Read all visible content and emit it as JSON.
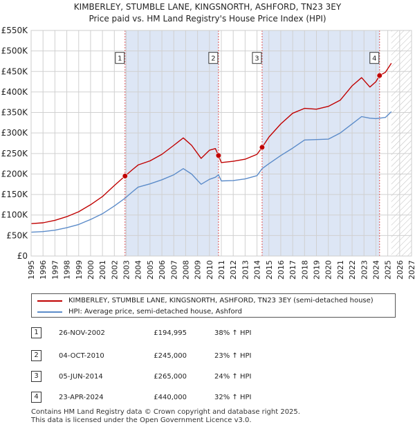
{
  "title": {
    "line1": "KIMBERLEY, STUMBLE LANE, KINGSNORTH, ASHFORD, TN23 3EY",
    "line2": "Price paid vs. HM Land Registry's House Price Index (HPI)"
  },
  "colors": {
    "property": "#c00000",
    "hpi": "#5b8bc9",
    "shade": "#dde6f5",
    "marker_line": "#e05050",
    "grid": "#d0d0d0"
  },
  "chart_data": {
    "type": "line",
    "xlim": [
      1995,
      2027
    ],
    "ylim": [
      0,
      550000
    ],
    "x_ticks": [
      1995,
      1996,
      1997,
      1998,
      1999,
      2000,
      2001,
      2002,
      2003,
      2004,
      2005,
      2006,
      2007,
      2008,
      2009,
      2010,
      2011,
      2012,
      2013,
      2014,
      2015,
      2016,
      2017,
      2018,
      2019,
      2020,
      2021,
      2022,
      2023,
      2024,
      2025,
      2026,
      2027
    ],
    "y_ticks": [
      0,
      50000,
      100000,
      150000,
      200000,
      250000,
      300000,
      350000,
      400000,
      450000,
      500000,
      550000
    ],
    "y_tick_labels": [
      "£0",
      "£50K",
      "£100K",
      "£150K",
      "£200K",
      "£250K",
      "£300K",
      "£350K",
      "£400K",
      "£450K",
      "£500K",
      "£550K"
    ],
    "shaded_ranges": [
      [
        2002.9,
        2010.76
      ],
      [
        2014.43,
        2024.31
      ]
    ],
    "future_hatch_from": 2025.3,
    "series": [
      {
        "name": "KIMBERLEY, STUMBLE LANE, KINGSNORTH, ASHFORD, TN23 3EY (semi-detached house)",
        "color": "#c00000",
        "points": [
          [
            1995,
            79000
          ],
          [
            1996,
            81000
          ],
          [
            1997,
            87000
          ],
          [
            1998,
            96000
          ],
          [
            1999,
            108000
          ],
          [
            2000,
            125000
          ],
          [
            2001,
            145000
          ],
          [
            2002,
            172000
          ],
          [
            2002.9,
            194995
          ],
          [
            2003.5,
            210000
          ],
          [
            2004,
            222000
          ],
          [
            2005,
            232000
          ],
          [
            2006,
            248000
          ],
          [
            2007,
            270000
          ],
          [
            2007.8,
            288000
          ],
          [
            2008.5,
            270000
          ],
          [
            2009.3,
            238000
          ],
          [
            2010,
            258000
          ],
          [
            2010.5,
            262000
          ],
          [
            2010.76,
            245000
          ],
          [
            2011,
            228000
          ],
          [
            2012,
            231000
          ],
          [
            2013,
            236000
          ],
          [
            2014,
            248000
          ],
          [
            2014.43,
            265000
          ],
          [
            2015,
            290000
          ],
          [
            2016,
            322000
          ],
          [
            2017,
            348000
          ],
          [
            2018,
            360000
          ],
          [
            2019,
            358000
          ],
          [
            2020,
            365000
          ],
          [
            2021,
            380000
          ],
          [
            2022,
            415000
          ],
          [
            2022.8,
            435000
          ],
          [
            2023.5,
            412000
          ],
          [
            2024,
            425000
          ],
          [
            2024.31,
            440000
          ],
          [
            2024.8,
            448000
          ],
          [
            2025.3,
            470000
          ]
        ]
      },
      {
        "name": "HPI: Average price, semi-detached house, Ashford",
        "color": "#5b8bc9",
        "points": [
          [
            1995,
            58000
          ],
          [
            1996,
            59500
          ],
          [
            1997,
            63000
          ],
          [
            1998,
            69000
          ],
          [
            1999,
            77000
          ],
          [
            2000,
            89000
          ],
          [
            2001,
            103000
          ],
          [
            2002,
            122000
          ],
          [
            2002.9,
            141000
          ],
          [
            2003.5,
            156000
          ],
          [
            2004,
            168000
          ],
          [
            2005,
            176000
          ],
          [
            2006,
            186000
          ],
          [
            2007,
            198000
          ],
          [
            2007.8,
            213000
          ],
          [
            2008.5,
            200000
          ],
          [
            2009.3,
            175000
          ],
          [
            2010,
            187000
          ],
          [
            2010.5,
            192000
          ],
          [
            2010.76,
            198000
          ],
          [
            2011,
            183000
          ],
          [
            2012,
            184000
          ],
          [
            2013,
            188000
          ],
          [
            2014,
            196000
          ],
          [
            2014.43,
            213000
          ],
          [
            2015,
            225000
          ],
          [
            2016,
            245000
          ],
          [
            2017,
            263000
          ],
          [
            2018,
            283000
          ],
          [
            2019,
            284000
          ],
          [
            2020,
            285000
          ],
          [
            2021,
            300000
          ],
          [
            2022,
            322000
          ],
          [
            2022.8,
            340000
          ],
          [
            2023.5,
            336000
          ],
          [
            2024,
            335000
          ],
          [
            2024.31,
            336000
          ],
          [
            2024.8,
            338000
          ],
          [
            2025.3,
            352000
          ]
        ]
      }
    ],
    "sales": [
      {
        "label": "1",
        "x": 2002.9,
        "y": 194995
      },
      {
        "label": "2",
        "x": 2010.76,
        "y": 245000
      },
      {
        "label": "3",
        "x": 2014.43,
        "y": 265000
      },
      {
        "label": "4",
        "x": 2024.31,
        "y": 440000
      }
    ],
    "marker_label_y": 483000
  },
  "legend": {
    "property_label": "KIMBERLEY, STUMBLE LANE, KINGSNORTH, ASHFORD, TN23 3EY (semi-detached house)",
    "hpi_label": "HPI: Average price, semi-detached house, Ashford"
  },
  "transactions": [
    {
      "num": "1",
      "date": "26-NOV-2002",
      "price": "£194,995",
      "hpi": "38% ↑ HPI"
    },
    {
      "num": "2",
      "date": "04-OCT-2010",
      "price": "£245,000",
      "hpi": "23% ↑ HPI"
    },
    {
      "num": "3",
      "date": "05-JUN-2014",
      "price": "£265,000",
      "hpi": "24% ↑ HPI"
    },
    {
      "num": "4",
      "date": "23-APR-2024",
      "price": "£440,000",
      "hpi": "32% ↑ HPI"
    }
  ],
  "footer": {
    "line1": "Contains HM Land Registry data © Crown copyright and database right 2025.",
    "line2": "This data is licensed under the Open Government Licence v3.0."
  }
}
